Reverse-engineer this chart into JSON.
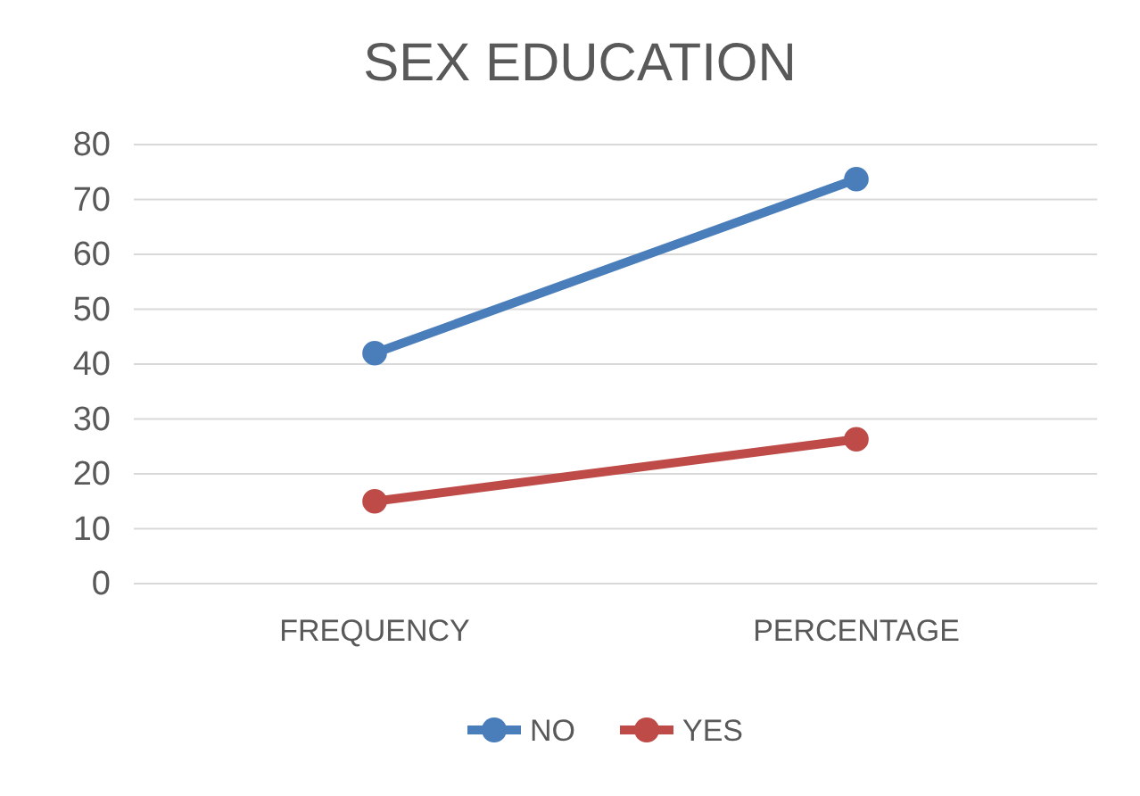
{
  "chart_data": {
    "type": "line",
    "title": "SEX EDUCATION",
    "categories": [
      "FREQUENCY",
      "PERCENTAGE"
    ],
    "series": [
      {
        "name": "NO",
        "color": "#4a7ebb",
        "values": [
          42,
          73.7
        ]
      },
      {
        "name": "YES",
        "color": "#be4b48",
        "values": [
          15,
          26.3
        ]
      }
    ],
    "ylim": [
      0,
      80
    ],
    "yticks": [
      0,
      10,
      20,
      30,
      40,
      50,
      60,
      70,
      80
    ],
    "grid": "y",
    "legend": "bottom",
    "marker": "circle",
    "line_style": "solid"
  }
}
